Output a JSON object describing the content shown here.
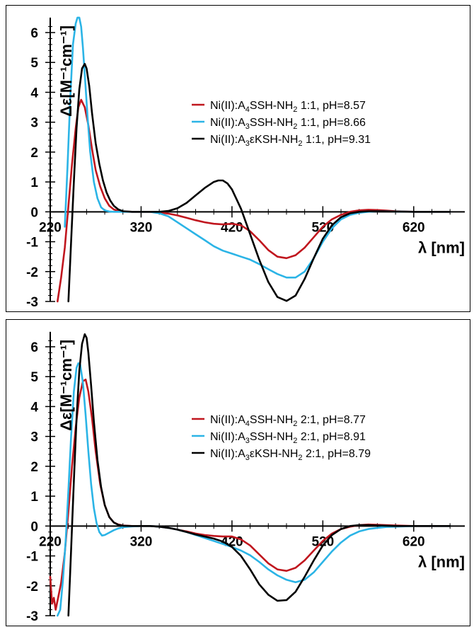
{
  "chart_data": [
    {
      "type": "line",
      "ylabel": "Δε[M⁻¹cm⁻¹]",
      "xlabel": "λ [nm]",
      "xlim": [
        220,
        670
      ],
      "ylim": [
        -3,
        6.5
      ],
      "x_ticks": [
        220,
        320,
        420,
        520,
        620
      ],
      "x_tick_labels": [
        "220",
        "320",
        "420",
        "520",
        "620"
      ],
      "y_ticks": [
        -3,
        -2,
        -1,
        0,
        1,
        2,
        3,
        4,
        5,
        6
      ],
      "y_tick_labels": [
        "-3",
        "-2",
        "-1",
        "0",
        "1",
        "2",
        "3",
        "4",
        "5",
        "6"
      ],
      "legend_position": "right",
      "series": [
        {
          "name": "Ni(II):A4SSH-NH2 1:1, pH=8.57",
          "name_parts": [
            "Ni(II):A",
            "4",
            "SSH-NH",
            "2",
            " 1:1, pH=8.57"
          ],
          "color": "#c0161e",
          "x": [
            228,
            232,
            236,
            240,
            244,
            248,
            251,
            254,
            258,
            262,
            266,
            270,
            275,
            280,
            285,
            290,
            295,
            300,
            310,
            320,
            330,
            340,
            350,
            360,
            370,
            380,
            390,
            400,
            410,
            420,
            430,
            440,
            450,
            460,
            470,
            480,
            490,
            500,
            510,
            520,
            530,
            540,
            550,
            560,
            570,
            580,
            590,
            600,
            620,
            640,
            660
          ],
          "y": [
            -3,
            -2.2,
            -1.2,
            0.2,
            1.6,
            2.8,
            3.5,
            3.75,
            3.5,
            2.9,
            2.1,
            1.4,
            0.85,
            0.45,
            0.2,
            0.08,
            0.03,
            0.01,
            0,
            0,
            0,
            -0.02,
            -0.06,
            -0.12,
            -0.2,
            -0.28,
            -0.35,
            -0.4,
            -0.42,
            -0.4,
            -0.45,
            -0.65,
            -0.95,
            -1.28,
            -1.5,
            -1.55,
            -1.45,
            -1.2,
            -0.85,
            -0.5,
            -0.25,
            -0.1,
            0,
            0.05,
            0.07,
            0.06,
            0.04,
            0.02,
            0,
            0,
            0
          ]
        },
        {
          "name": "Ni(II):A3SSH-NH2 1:1, pH=8.66",
          "name_parts": [
            "Ni(II):A",
            "3",
            "SSH-NH",
            "2",
            " 1:1, pH=8.66"
          ],
          "color": "#2bb4e6",
          "x": [
            236,
            239,
            242,
            245,
            248,
            250,
            252,
            254,
            256,
            258,
            261,
            264,
            268,
            272,
            276,
            280,
            285,
            290,
            295,
            300,
            310,
            320,
            330,
            340,
            350,
            360,
            370,
            380,
            390,
            400,
            410,
            420,
            430,
            440,
            450,
            460,
            470,
            480,
            490,
            500,
            510,
            520,
            530,
            540,
            550,
            560,
            570,
            580,
            590,
            600,
            620,
            640,
            660
          ],
          "y": [
            -0.5,
            1.5,
            3.8,
            5.6,
            6.3,
            6.5,
            6.5,
            6.2,
            5.5,
            4.6,
            3.2,
            2.0,
            1.0,
            0.45,
            0.15,
            0.05,
            0.01,
            0,
            0,
            0,
            0,
            0,
            0,
            -0.05,
            -0.15,
            -0.35,
            -0.55,
            -0.75,
            -0.95,
            -1.15,
            -1.3,
            -1.4,
            -1.5,
            -1.6,
            -1.75,
            -1.92,
            -2.08,
            -2.2,
            -2.2,
            -2.0,
            -1.55,
            -1.0,
            -0.55,
            -0.25,
            -0.1,
            -0.03,
            0,
            0.02,
            0.02,
            0.01,
            0,
            0,
            0
          ]
        },
        {
          "name": "Ni(II):A3εKSH-NH2 1:1, pH=9.31",
          "name_parts": [
            "Ni(II):A",
            "3",
            "εKSH-NH",
            "2",
            " 1:1, pH=9.31"
          ],
          "color": "#000000",
          "x": [
            240,
            243,
            246,
            249,
            252,
            255,
            258,
            260,
            263,
            266,
            270,
            274,
            278,
            282,
            286,
            290,
            295,
            300,
            310,
            320,
            330,
            340,
            350,
            360,
            370,
            380,
            390,
            400,
            405,
            410,
            415,
            420,
            430,
            440,
            450,
            460,
            470,
            480,
            490,
            500,
            510,
            520,
            530,
            540,
            550,
            560,
            570,
            580,
            600,
            620,
            640,
            660
          ],
          "y": [
            -3,
            -1.0,
            1.0,
            2.8,
            4.1,
            4.8,
            4.95,
            4.8,
            4.2,
            3.3,
            2.3,
            1.6,
            1.05,
            0.65,
            0.38,
            0.2,
            0.08,
            0.02,
            0,
            0,
            0,
            0,
            0.03,
            0.12,
            0.3,
            0.55,
            0.8,
            1.0,
            1.05,
            1.05,
            0.95,
            0.75,
            0.1,
            -0.75,
            -1.6,
            -2.35,
            -2.85,
            -2.98,
            -2.8,
            -2.25,
            -1.55,
            -0.9,
            -0.45,
            -0.18,
            -0.05,
            0,
            0.02,
            0.02,
            0.01,
            0,
            0,
            0
          ]
        }
      ]
    },
    {
      "type": "line",
      "ylabel": "Δε[M⁻¹cm⁻¹]",
      "xlabel": "λ [nm]",
      "xlim": [
        220,
        670
      ],
      "ylim": [
        -3,
        6.5
      ],
      "x_ticks": [
        220,
        320,
        420,
        520,
        620
      ],
      "x_tick_labels": [
        "220",
        "320",
        "420",
        "520",
        "620"
      ],
      "y_ticks": [
        -3,
        -2,
        -1,
        0,
        1,
        2,
        3,
        4,
        5,
        6
      ],
      "y_tick_labels": [
        "-3",
        "-2",
        "-1",
        "0",
        "1",
        "2",
        "3",
        "4",
        "5",
        "6"
      ],
      "legend_position": "right",
      "series": [
        {
          "name": "Ni(II):A4SSH-NH2 2:1, pH=8.77",
          "name_parts": [
            "Ni(II):A",
            "4",
            "SSH-NH",
            "2",
            " 2:1, pH=8.77"
          ],
          "color": "#c0161e",
          "x": [
            220,
            222,
            224,
            226,
            228,
            232,
            236,
            240,
            244,
            248,
            252,
            256,
            259,
            262,
            266,
            270,
            275,
            280,
            285,
            290,
            295,
            300,
            310,
            320,
            330,
            340,
            350,
            360,
            370,
            380,
            390,
            400,
            410,
            420,
            430,
            440,
            450,
            460,
            470,
            480,
            490,
            500,
            510,
            520,
            530,
            540,
            550,
            560,
            570,
            580,
            590,
            600,
            620,
            640,
            660
          ],
          "y": [
            -1.7,
            -2.6,
            -2.4,
            -2.8,
            -2.5,
            -1.9,
            -0.9,
            0.5,
            2.0,
            3.3,
            4.3,
            4.85,
            4.9,
            4.5,
            3.6,
            2.5,
            1.4,
            0.7,
            0.3,
            0.12,
            0.05,
            0.02,
            0,
            0,
            0,
            -0.02,
            -0.06,
            -0.12,
            -0.18,
            -0.25,
            -0.3,
            -0.33,
            -0.35,
            -0.35,
            -0.45,
            -0.65,
            -0.95,
            -1.25,
            -1.45,
            -1.5,
            -1.4,
            -1.15,
            -0.82,
            -0.5,
            -0.25,
            -0.1,
            -0.02,
            0.03,
            0.05,
            0.04,
            0.03,
            0.02,
            0,
            0,
            0
          ]
        },
        {
          "name": "Ni(II):A3SSH-NH2 2:1, pH=8.91",
          "name_parts": [
            "Ni(II):A",
            "3",
            "SSH-NH",
            "2",
            " 2:1, pH=8.91"
          ],
          "color": "#2bb4e6",
          "x": [
            228,
            231,
            234,
            237,
            240,
            243,
            246,
            249,
            251,
            253,
            256,
            259,
            262,
            265,
            268,
            271,
            274,
            277,
            280,
            285,
            290,
            295,
            300,
            310,
            320,
            330,
            340,
            350,
            360,
            370,
            380,
            390,
            400,
            410,
            420,
            430,
            440,
            450,
            460,
            470,
            480,
            490,
            500,
            510,
            520,
            530,
            540,
            550,
            560,
            570,
            580,
            590,
            600,
            620,
            640,
            660
          ],
          "y": [
            -3,
            -2.8,
            -1.8,
            -0.5,
            1.2,
            3.0,
            4.5,
            5.3,
            5.45,
            5.4,
            4.8,
            3.7,
            2.5,
            1.4,
            0.6,
            0.1,
            -0.2,
            -0.32,
            -0.3,
            -0.22,
            -0.14,
            -0.08,
            -0.04,
            -0.01,
            0,
            0,
            -0.02,
            -0.06,
            -0.12,
            -0.2,
            -0.3,
            -0.4,
            -0.5,
            -0.6,
            -0.7,
            -0.82,
            -0.98,
            -1.2,
            -1.45,
            -1.65,
            -1.8,
            -1.88,
            -1.8,
            -1.55,
            -1.2,
            -0.85,
            -0.55,
            -0.32,
            -0.18,
            -0.1,
            -0.06,
            -0.03,
            -0.02,
            0,
            0,
            0
          ]
        },
        {
          "name": "Ni(II):A3εKSH-NH2 2:1, pH=8.79",
          "name_parts": [
            "Ni(II):A",
            "3",
            "εKSH-NH",
            "2",
            " 2:1, pH=8.79"
          ],
          "color": "#000000",
          "x": [
            240,
            243,
            246,
            249,
            252,
            255,
            258,
            260,
            262,
            265,
            268,
            272,
            276,
            280,
            285,
            290,
            295,
            300,
            310,
            320,
            330,
            340,
            350,
            360,
            370,
            380,
            390,
            400,
            410,
            420,
            430,
            440,
            450,
            460,
            470,
            480,
            490,
            500,
            510,
            520,
            530,
            540,
            550,
            560,
            570,
            580,
            590,
            600,
            620,
            640,
            660
          ],
          "y": [
            -3,
            -0.8,
            1.5,
            3.6,
            5.2,
            6.1,
            6.42,
            6.3,
            5.8,
            4.7,
            3.5,
            2.2,
            1.3,
            0.7,
            0.3,
            0.12,
            0.04,
            0.01,
            0,
            0,
            0,
            -0.02,
            -0.06,
            -0.12,
            -0.2,
            -0.28,
            -0.35,
            -0.42,
            -0.52,
            -0.7,
            -1.0,
            -1.45,
            -1.95,
            -2.3,
            -2.5,
            -2.48,
            -2.2,
            -1.7,
            -1.15,
            -0.65,
            -0.3,
            -0.1,
            0,
            0.03,
            0.03,
            0.02,
            0.01,
            0,
            0,
            0,
            0
          ]
        }
      ]
    }
  ]
}
